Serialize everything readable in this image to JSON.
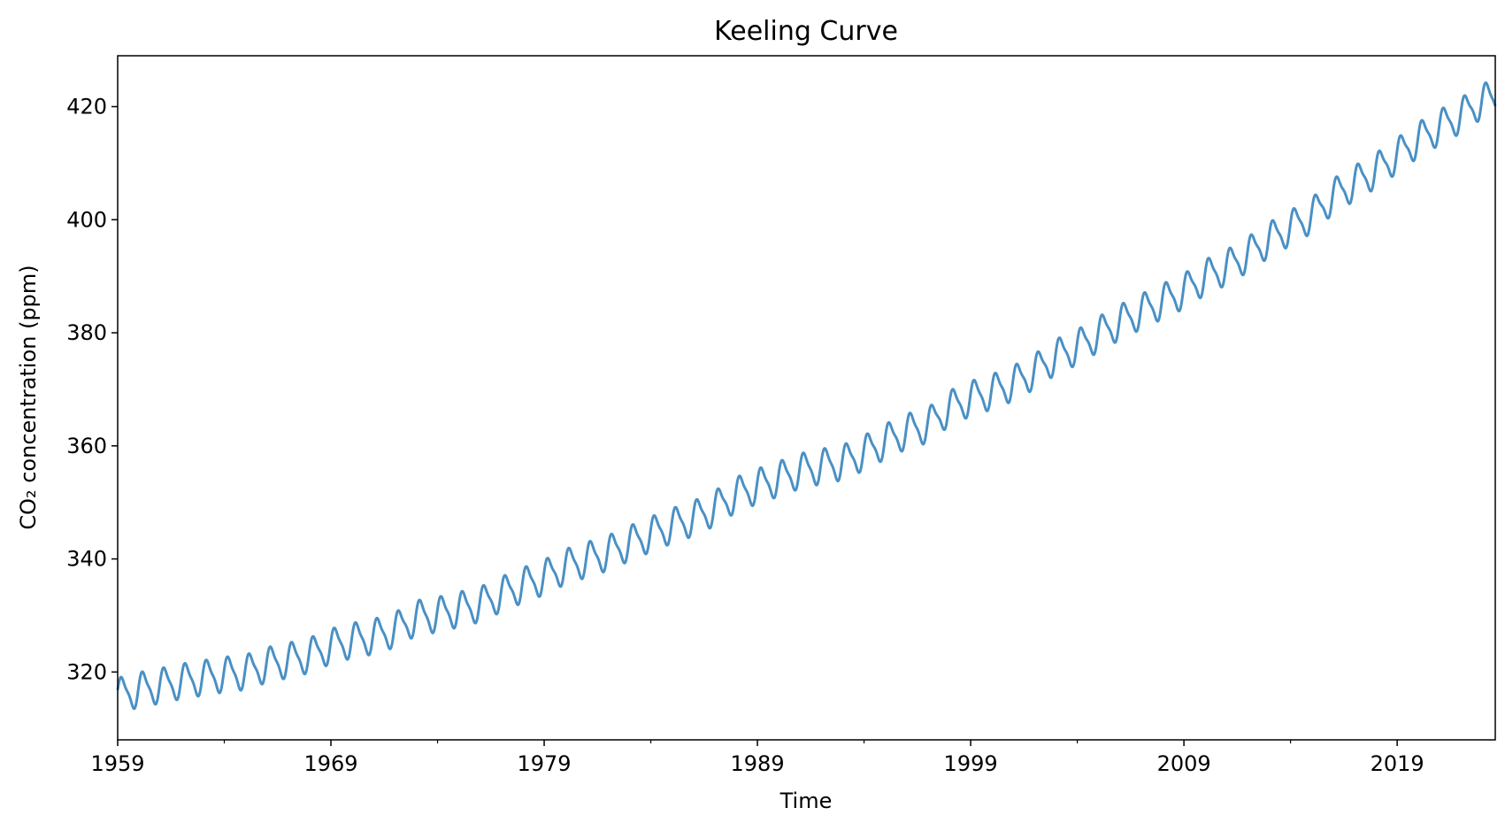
{
  "chart_data": {
    "type": "line",
    "title": "Keeling Curve",
    "xlabel": "Time",
    "ylabel": "CO₂ concentration (ppm)",
    "xlim": [
      1959.0,
      2023.6
    ],
    "ylim": [
      308,
      429
    ],
    "grid": false,
    "line_color": "#4a90c4",
    "x_ticks": [
      {
        "value": 1959,
        "label": "1959"
      },
      {
        "value": 1969,
        "label": "1969"
      },
      {
        "value": 1979,
        "label": "1979"
      },
      {
        "value": 1989,
        "label": "1989"
      },
      {
        "value": 1999,
        "label": "1999"
      },
      {
        "value": 2009,
        "label": "2009"
      },
      {
        "value": 2019,
        "label": "2019"
      }
    ],
    "x_minor_ticks": [
      1964,
      1974,
      1984,
      1994,
      2004,
      2014
    ],
    "y_ticks": [
      {
        "value": 320,
        "label": "320"
      },
      {
        "value": 340,
        "label": "340"
      },
      {
        "value": 360,
        "label": "360"
      },
      {
        "value": 380,
        "label": "380"
      },
      {
        "value": 400,
        "label": "400"
      },
      {
        "value": 420,
        "label": "420"
      }
    ],
    "series": [
      {
        "seasonal_amplitude_ppm": 3.0,
        "points": [
          [
            1959,
            315.9
          ],
          [
            1960,
            316.9
          ],
          [
            1961,
            317.6
          ],
          [
            1962,
            318.4
          ],
          [
            1963,
            319.0
          ],
          [
            1964,
            319.6
          ],
          [
            1965,
            320.0
          ],
          [
            1966,
            321.3
          ],
          [
            1967,
            322.1
          ],
          [
            1968,
            323.0
          ],
          [
            1969,
            324.6
          ],
          [
            1970,
            325.6
          ],
          [
            1971,
            326.3
          ],
          [
            1972,
            327.5
          ],
          [
            1973,
            329.6
          ],
          [
            1974,
            330.2
          ],
          [
            1975,
            331.1
          ],
          [
            1976,
            332.0
          ],
          [
            1977,
            333.8
          ],
          [
            1978,
            335.4
          ],
          [
            1979,
            336.8
          ],
          [
            1980,
            338.7
          ],
          [
            1981,
            339.9
          ],
          [
            1982,
            341.1
          ],
          [
            1983,
            342.8
          ],
          [
            1984,
            344.4
          ],
          [
            1985,
            345.9
          ],
          [
            1986,
            347.2
          ],
          [
            1987,
            349.0
          ],
          [
            1988,
            351.4
          ],
          [
            1989,
            352.9
          ],
          [
            1990,
            354.2
          ],
          [
            1991,
            355.6
          ],
          [
            1992,
            356.4
          ],
          [
            1993,
            357.1
          ],
          [
            1994,
            358.8
          ],
          [
            1995,
            360.8
          ],
          [
            1996,
            362.6
          ],
          [
            1997,
            363.7
          ],
          [
            1998,
            366.7
          ],
          [
            1999,
            368.4
          ],
          [
            2000,
            369.6
          ],
          [
            2001,
            371.1
          ],
          [
            2002,
            373.2
          ],
          [
            2003,
            375.8
          ],
          [
            2004,
            377.5
          ],
          [
            2005,
            379.8
          ],
          [
            2006,
            381.9
          ],
          [
            2007,
            383.8
          ],
          [
            2008,
            385.6
          ],
          [
            2009,
            387.4
          ],
          [
            2010,
            389.9
          ],
          [
            2011,
            391.6
          ],
          [
            2012,
            393.9
          ],
          [
            2013,
            396.5
          ],
          [
            2014,
            398.6
          ],
          [
            2015,
            400.8
          ],
          [
            2016,
            404.2
          ],
          [
            2017,
            406.5
          ],
          [
            2018,
            408.7
          ],
          [
            2019,
            411.4
          ],
          [
            2020,
            414.2
          ],
          [
            2021,
            416.4
          ],
          [
            2022,
            418.5
          ],
          [
            2023,
            421.1
          ],
          [
            2023.6,
            421.4
          ]
        ]
      }
    ]
  }
}
